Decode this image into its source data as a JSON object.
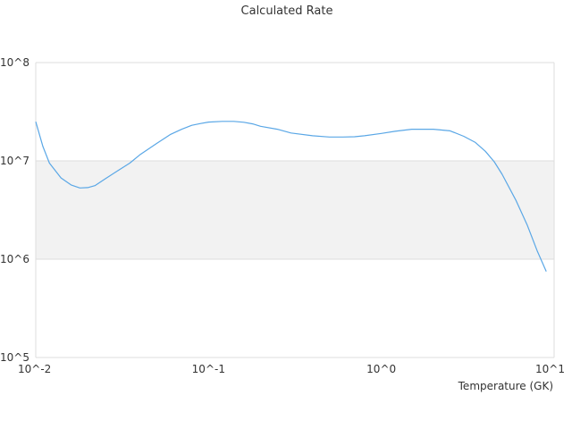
{
  "chart_data": {
    "type": "line",
    "title": "Calculated Rate",
    "xlabel": "Temperature (GK)",
    "ylabel": "",
    "x_scale": "log",
    "y_scale": "log",
    "xlim": [
      0.01,
      10
    ],
    "ylim": [
      100000,
      100000000
    ],
    "x_ticks": [
      "10^-2",
      "10^-1",
      "10^0",
      "10^1"
    ],
    "y_ticks": [
      "10^5",
      "10^6",
      "10^7",
      "10^8"
    ],
    "grid": true,
    "shaded_band": [
      1000000,
      10000000
    ],
    "colors": {
      "line": "#5aa7e6",
      "band": "#f2f2f2",
      "grid": "#dddddd"
    },
    "series": [
      {
        "x": [
          0.01,
          0.011,
          0.012,
          0.014,
          0.016,
          0.018,
          0.02,
          0.022,
          0.025,
          0.03,
          0.035,
          0.04,
          0.05,
          0.06,
          0.07,
          0.08,
          0.09,
          0.1,
          0.12,
          0.14,
          0.16,
          0.18,
          0.2,
          0.25,
          0.3,
          0.4,
          0.5,
          0.6,
          0.7,
          0.8,
          1.0,
          1.2,
          1.5,
          2.0,
          2.5,
          3.0,
          3.5,
          4.0,
          4.5,
          5.0,
          6.0,
          7.0,
          8.0,
          9.0
        ],
        "y": [
          25000000,
          14000000,
          9500000,
          6700000,
          5700000,
          5300000,
          5350000,
          5600000,
          6500000,
          8000000,
          9500000,
          11500000,
          15000000,
          18500000,
          21000000,
          23000000,
          24000000,
          24800000,
          25200000,
          25200000,
          24700000,
          23800000,
          22500000,
          21000000,
          19200000,
          18000000,
          17500000,
          17500000,
          17600000,
          18000000,
          19000000,
          20000000,
          21000000,
          21000000,
          20200000,
          17800000,
          15400000,
          12500000,
          9800000,
          7300000,
          4000000,
          2200000,
          1200000,
          750000
        ]
      }
    ]
  }
}
